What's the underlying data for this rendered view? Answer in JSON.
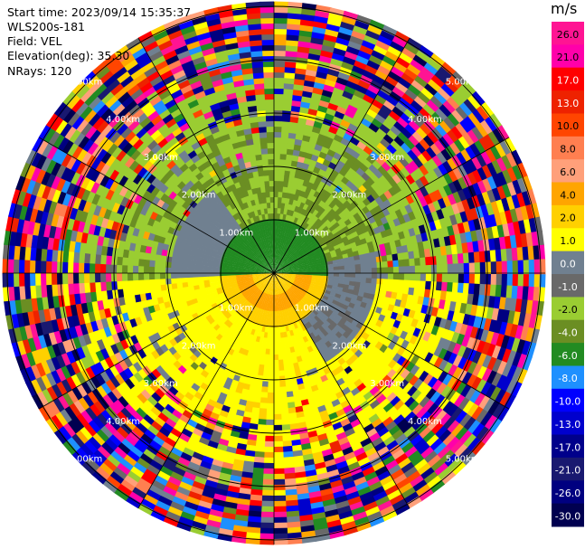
{
  "header": {
    "start_time": "Start time: 2023/09/14 15:35:37",
    "instrument": "WLS200s-181",
    "field": "Field: VEL",
    "elevation": "Elevation(deg): 35.30",
    "nrays": "NRays: 120"
  },
  "chart_data": {
    "type": "polar-ppi",
    "nrays": 120,
    "range_rings_km": [
      "1.00km",
      "2.00km",
      "3.00km",
      "4.00km",
      "5.00km"
    ],
    "colorbar": {
      "unit": "m/s",
      "ticks": [
        "26.0",
        "21.0",
        "17.0",
        "13.0",
        "10.0",
        "8.0",
        "6.0",
        "4.0",
        "2.0",
        "1.0",
        "0.0",
        "-1.0",
        "-2.0",
        "-4.0",
        "-6.0",
        "-8.0",
        "-10.0",
        "-13.0",
        "-17.0",
        "-21.0",
        "-26.0",
        "-30.0"
      ],
      "colors": [
        "#ff1493",
        "#ff00aa",
        "#ff0000",
        "#ee2200",
        "#ff4500",
        "#ff7f50",
        "#ffa07a",
        "#ffa500",
        "#ffd000",
        "#ffff00",
        "#708090",
        "#696969",
        "#9acd32",
        "#6b8e23",
        "#228b22",
        "#1e90ff",
        "#0000ff",
        "#0000cd",
        "#00008b",
        "#191970",
        "#000080",
        "#000050"
      ]
    }
  }
}
